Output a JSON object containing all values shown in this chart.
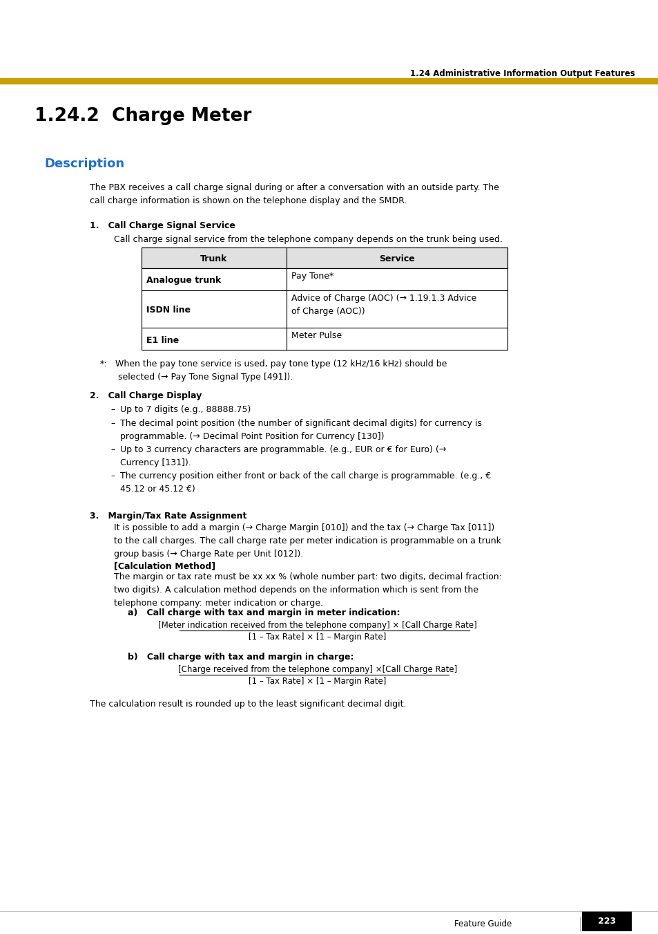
{
  "header_text": "1.24 Administrative Information Output Features",
  "header_bar_color": "#C8A000",
  "title": "1.24.2  Charge Meter",
  "section_title": "Description",
  "section_title_color": "#1E6FCC",
  "intro_text": "The PBX receives a call charge signal during or after a conversation with an outside party. The\ncall charge information is shown on the telephone display and the SMDR.",
  "subsection1_title": "1.   Call Charge Signal Service",
  "subsection1_intro": "Call charge signal service from the telephone company depends on the trunk being used.",
  "table_headers": [
    "Trunk",
    "Service"
  ],
  "table_rows": [
    [
      "Analogue trunk",
      "Pay Tone*"
    ],
    [
      "ISDN line",
      "Advice of Charge (AOC) (→ 1.19.1.3 Advice\nof Charge (AOC))"
    ],
    [
      "E1 line",
      "Meter Pulse"
    ]
  ],
  "footnote_star": "*:",
  "footnote_text": "  When the pay tone service is used, pay tone type (12 kHz/16 kHz) should be\n   selected (→ Pay Tone Signal Type [491]).",
  "subsection2_title": "2.   Call Charge Display",
  "subsection2_bullets": [
    "Up to 7 digits (e.g., 88888.75)",
    "The decimal point position (the number of significant decimal digits) for currency is\nprogrammable. (→ Decimal Point Position for Currency [130])",
    "Up to 3 currency characters are programmable. (e.g., EUR or € for Euro) (→\nCurrency [131]).",
    "The currency position either front or back of the call charge is programmable. (e.g., €\n45.12 or 45.12 €)"
  ],
  "subsection3_title": "3.   Margin/Tax Rate Assignment",
  "subsection3_text1": "It is possible to add a margin (→ Charge Margin [010]) and the tax (→ Charge Tax [011])\nto the call charges. The call charge rate per meter indication is programmable on a trunk\ngroup basis (→ Charge Rate per Unit [012]).",
  "calc_method_label": "[Calculation Method]",
  "calc_method_text": "The margin or tax rate must be xx.xx % (whole number part: two digits, decimal fraction:\ntwo digits). A calculation method depends on the information which is sent from the\ntelephone company: meter indication or charge.",
  "sub_a_title": "a)   Call charge with tax and margin in meter indication:",
  "sub_a_numerator": "[Meter indication received from the telephone company] × [Call Charge Rate]",
  "sub_a_denominator": "[1 – Tax Rate] × [1 – Margin Rate]",
  "sub_b_title": "b)   Call charge with tax and margin in charge:",
  "sub_b_numerator": "[Charge received from the telephone company] ×[Call Charge Rate]",
  "sub_b_denominator": "[1 – Tax Rate] × [1 – Margin Rate]",
  "conclusion_text": "The calculation result is rounded up to the least significant decimal digit.",
  "footer_text": "Feature Guide",
  "footer_page": "223",
  "bg_color": "#FFFFFF",
  "text_color": "#000000"
}
